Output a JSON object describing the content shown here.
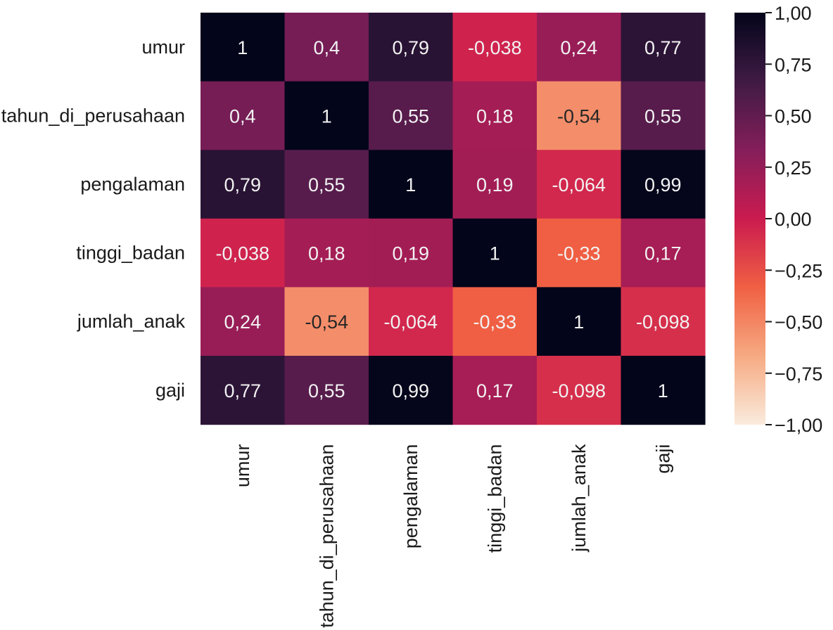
{
  "chart_data": {
    "type": "heatmap",
    "title": "",
    "rows": [
      "umur",
      "tahun_di_perusahaan",
      "pengalaman",
      "tinggi_badan",
      "jumlah_anak",
      "gaji"
    ],
    "columns": [
      "umur",
      "tahun_di_perusahaan",
      "pengalaman",
      "tinggi_badan",
      "jumlah_anak",
      "gaji"
    ],
    "values": [
      [
        1,
        0.4,
        0.79,
        -0.038,
        0.24,
        0.77
      ],
      [
        0.4,
        1,
        0.55,
        0.18,
        -0.54,
        0.55
      ],
      [
        0.79,
        0.55,
        1,
        0.19,
        -0.064,
        0.99
      ],
      [
        -0.038,
        0.18,
        0.19,
        1,
        -0.33,
        0.17
      ],
      [
        0.24,
        -0.54,
        -0.064,
        -0.33,
        1,
        -0.098
      ],
      [
        0.77,
        0.55,
        0.99,
        0.17,
        -0.098,
        1
      ]
    ],
    "annotations": [
      [
        "1",
        "0,4",
        "0,79",
        "-0,038",
        "0,24",
        "0,77"
      ],
      [
        "0,4",
        "1",
        "0,55",
        "0,18",
        "-0,54",
        "0,55"
      ],
      [
        "0,79",
        "0,55",
        "1",
        "0,19",
        "-0,064",
        "0,99"
      ],
      [
        "-0,038",
        "0,18",
        "0,19",
        "1",
        "-0,33",
        "0,17"
      ],
      [
        "0,24",
        "-0,54",
        "-0,064",
        "-0,33",
        "1",
        "-0,098"
      ],
      [
        "0,77",
        "0,55",
        "0,99",
        "0,17",
        "-0,098",
        "1"
      ]
    ],
    "colorbar": {
      "range": [
        -1,
        1
      ],
      "tick_values": [
        1,
        0.75,
        0.5,
        0.25,
        0,
        -0.25,
        -0.5,
        -0.75,
        -1
      ],
      "tick_labels": [
        "1,00",
        "0,75",
        "0,50",
        "0,25",
        "0,00",
        "−0,25",
        "−0,50",
        "−0,75",
        "−1,00"
      ],
      "colormap": "rocket_r",
      "color_stops": [
        "#faebdd",
        "#f6aa82",
        "#f06043",
        "#cb1b4f",
        "#841e5a",
        "#3f1b44",
        "#03051a"
      ]
    }
  }
}
